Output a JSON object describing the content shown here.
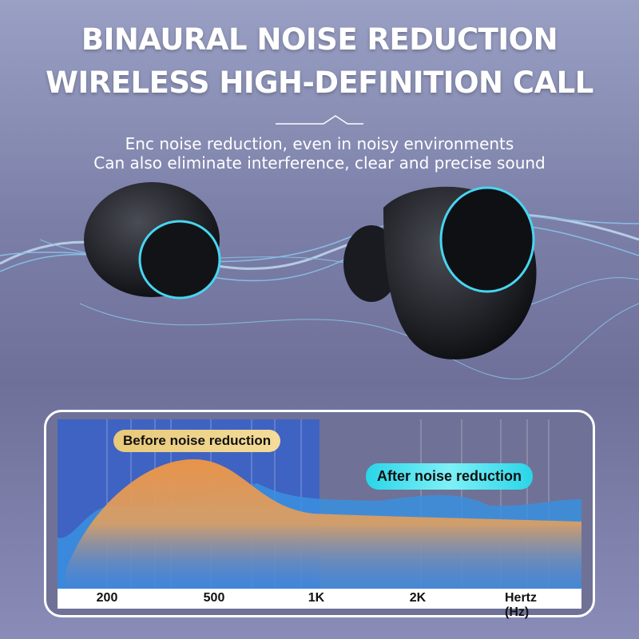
{
  "headline": {
    "line1": "BINAURAL NOISE REDUCTION",
    "line2": "WIRELESS HIGH-DEFINITION CALL"
  },
  "subtitle": {
    "line1": "Enc noise reduction, even in noisy environments",
    "line2": "Can also eliminate interference, clear and precise sound"
  },
  "chart": {
    "before_label": "Before noise reduction",
    "after_label": "After noise reduction",
    "ticks": [
      "200",
      "500",
      "1K",
      "2K",
      "Hertz (Hz)"
    ],
    "colors": {
      "before": "#e8944a",
      "after": "#3a8fe0",
      "highlight": "#2f5fd0"
    }
  }
}
